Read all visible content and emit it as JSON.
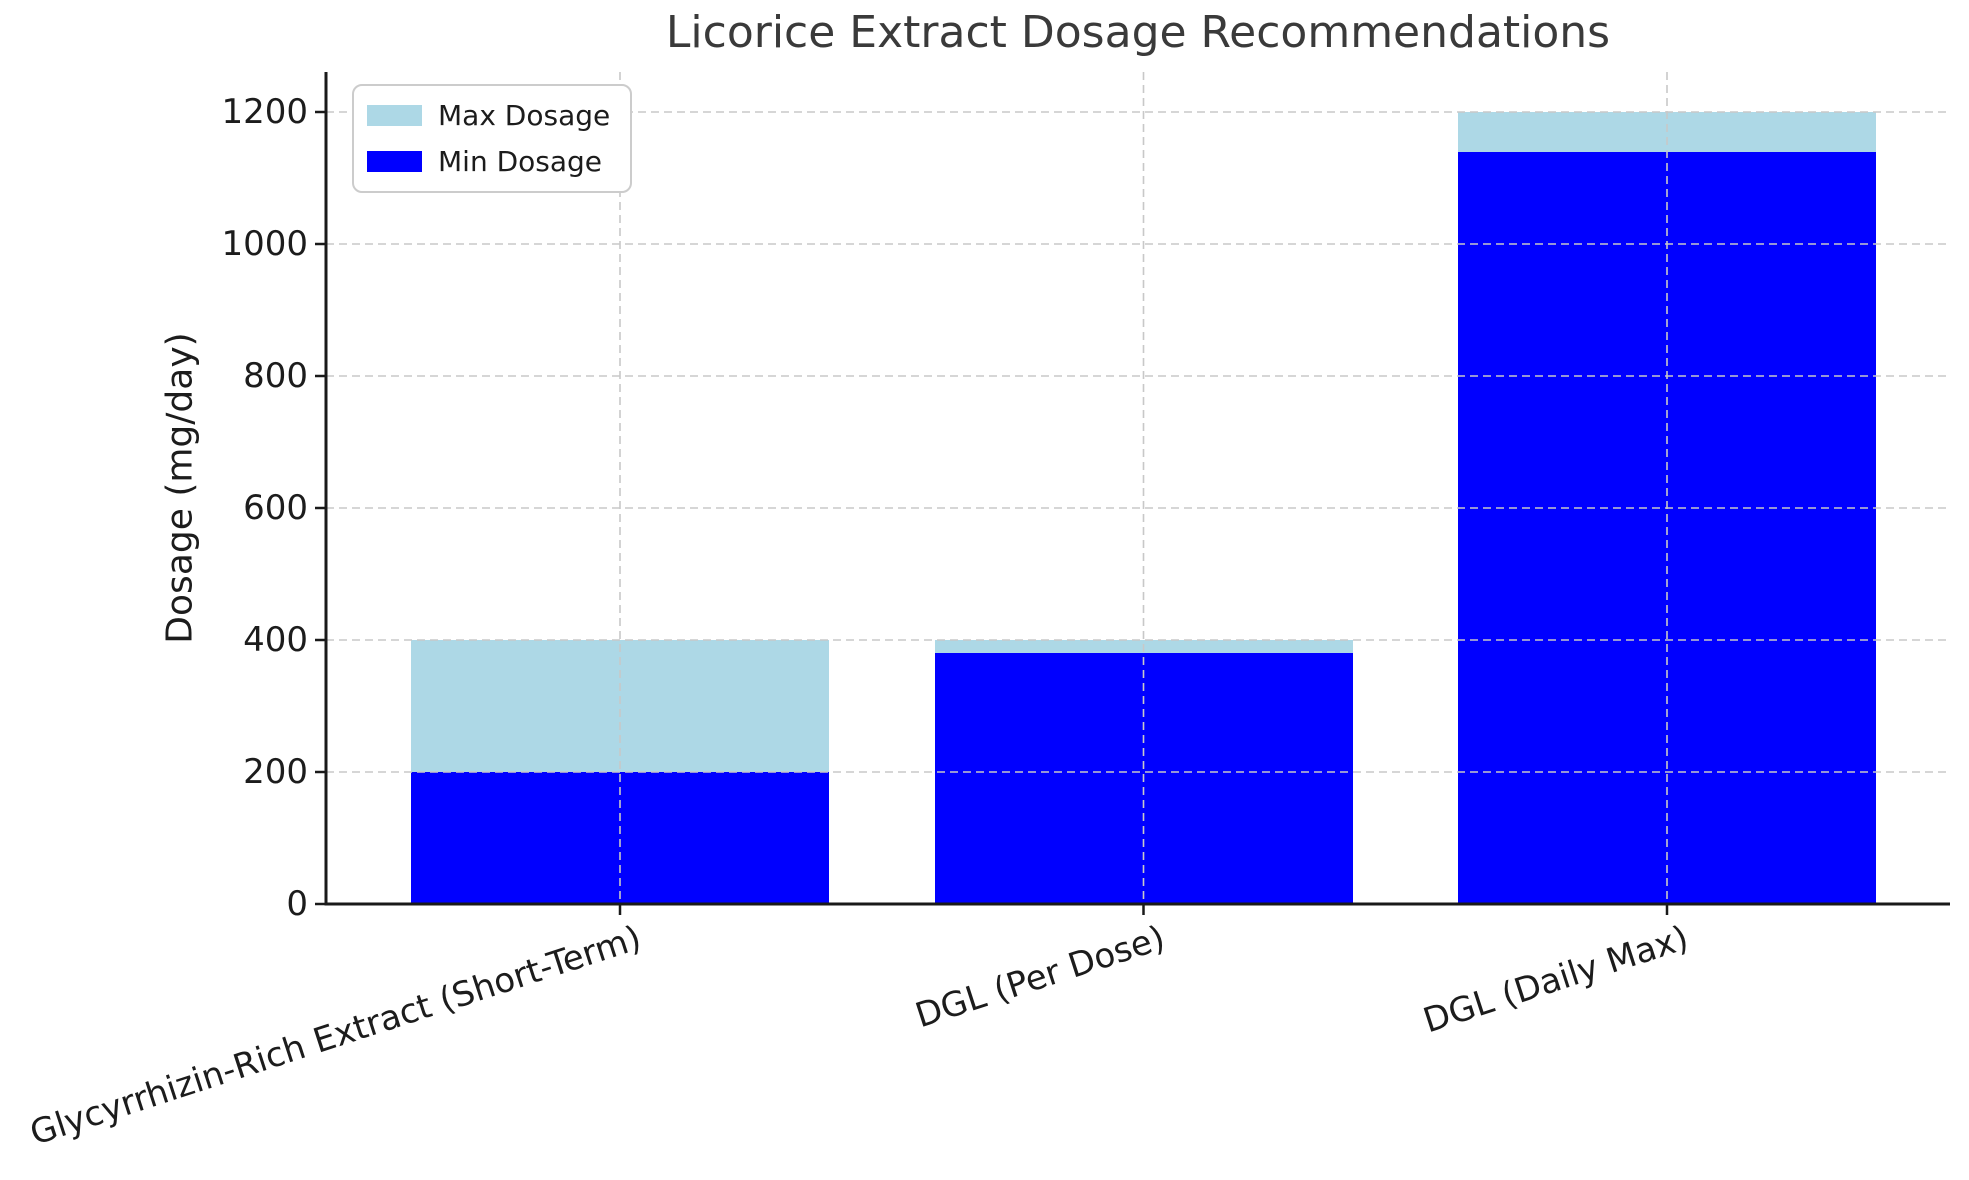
{
  "chart_data": {
    "type": "bar",
    "title": "Licorice Extract Dosage Recommendations",
    "ylabel": "Dosage (mg/day)",
    "xlabel": "",
    "categories": [
      "Glycyrrhizin-Rich Extract (Short-Term)",
      "DGL (Per Dose)",
      "DGL (Daily Max)"
    ],
    "series": [
      {
        "name": "Max Dosage",
        "color": "#ADD8E6",
        "values": [
          400,
          400,
          1200
        ]
      },
      {
        "name": "Min Dosage",
        "color": "#0000FF",
        "values": [
          200,
          380,
          1140
        ]
      }
    ],
    "bar_style": "overlaid",
    "yticks": [
      0,
      200,
      400,
      600,
      800,
      1000,
      1200
    ],
    "ylim": [
      0,
      1260
    ],
    "grid": true,
    "grid_style": "dashed",
    "grid_over_bars": true,
    "legend_position": "upper left",
    "xtick_rotation_deg": 18,
    "colors": {
      "background": "#ffffff",
      "grid": "#c8c8c8",
      "axis": "#1a1a1a",
      "title_text": "#3a3a3a",
      "tick_text": "#1c1c1c",
      "legend_border": "#cccccc"
    }
  }
}
